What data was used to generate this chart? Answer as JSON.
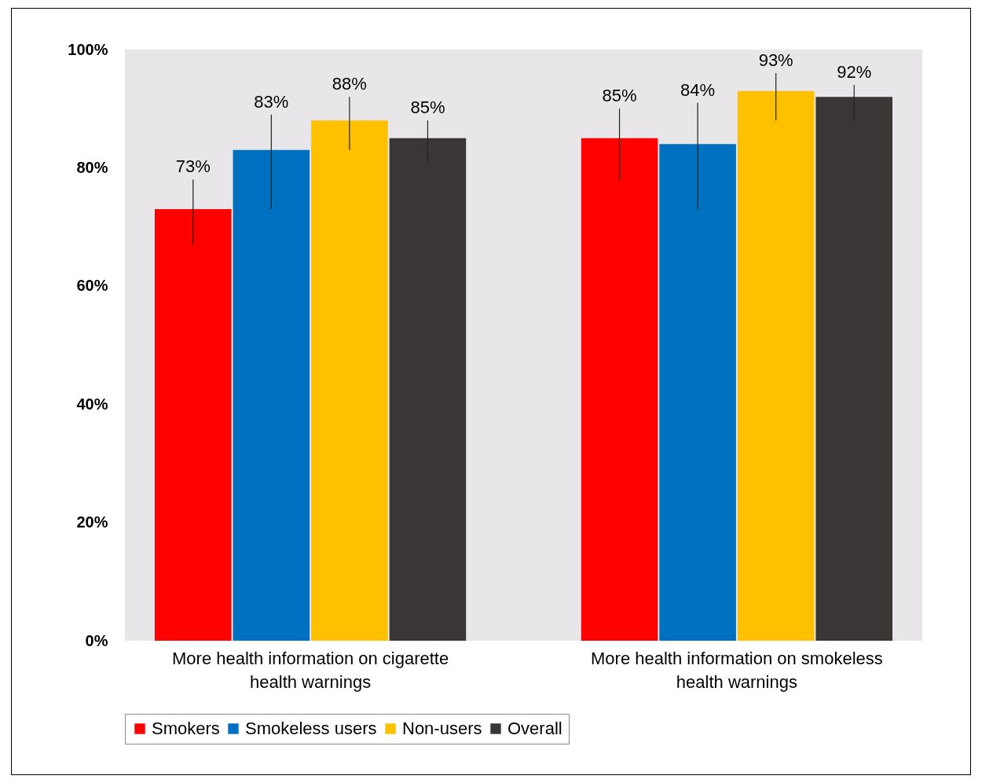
{
  "chart_data": {
    "type": "bar",
    "categories": [
      "More health information on cigarette health warnings",
      "More health information on smokeless health warnings"
    ],
    "series": [
      {
        "name": "Smokers",
        "color": "#ff0000",
        "values": [
          73,
          85
        ],
        "errors": [
          [
            67,
            78
          ],
          [
            78,
            90
          ]
        ],
        "value_labels": [
          "73%",
          "85%"
        ]
      },
      {
        "name": "Smokeless users",
        "color": "#0070c0",
        "values": [
          83,
          84
        ],
        "errors": [
          [
            73,
            89
          ],
          [
            73,
            91
          ]
        ],
        "value_labels": [
          "83%",
          "84%"
        ]
      },
      {
        "name": "Non-users",
        "color": "#ffc000",
        "values": [
          88,
          93
        ],
        "errors": [
          [
            83,
            92
          ],
          [
            88,
            96
          ]
        ],
        "value_labels": [
          "88%",
          "93%"
        ]
      },
      {
        "name": "Overall",
        "color": "#3a3636",
        "values": [
          85,
          92
        ],
        "errors": [
          [
            81,
            88
          ],
          [
            88,
            94
          ]
        ],
        "value_labels": [
          "85%",
          "92%"
        ]
      }
    ],
    "ylim": [
      0,
      100
    ],
    "yticks": [
      {
        "value": 0,
        "label": "0%"
      },
      {
        "value": 20,
        "label": "20%"
      },
      {
        "value": 40,
        "label": "40%"
      },
      {
        "value": 60,
        "label": "60%"
      },
      {
        "value": 80,
        "label": "80%"
      },
      {
        "value": 100,
        "label": "100%"
      }
    ],
    "legend": "bottom"
  }
}
